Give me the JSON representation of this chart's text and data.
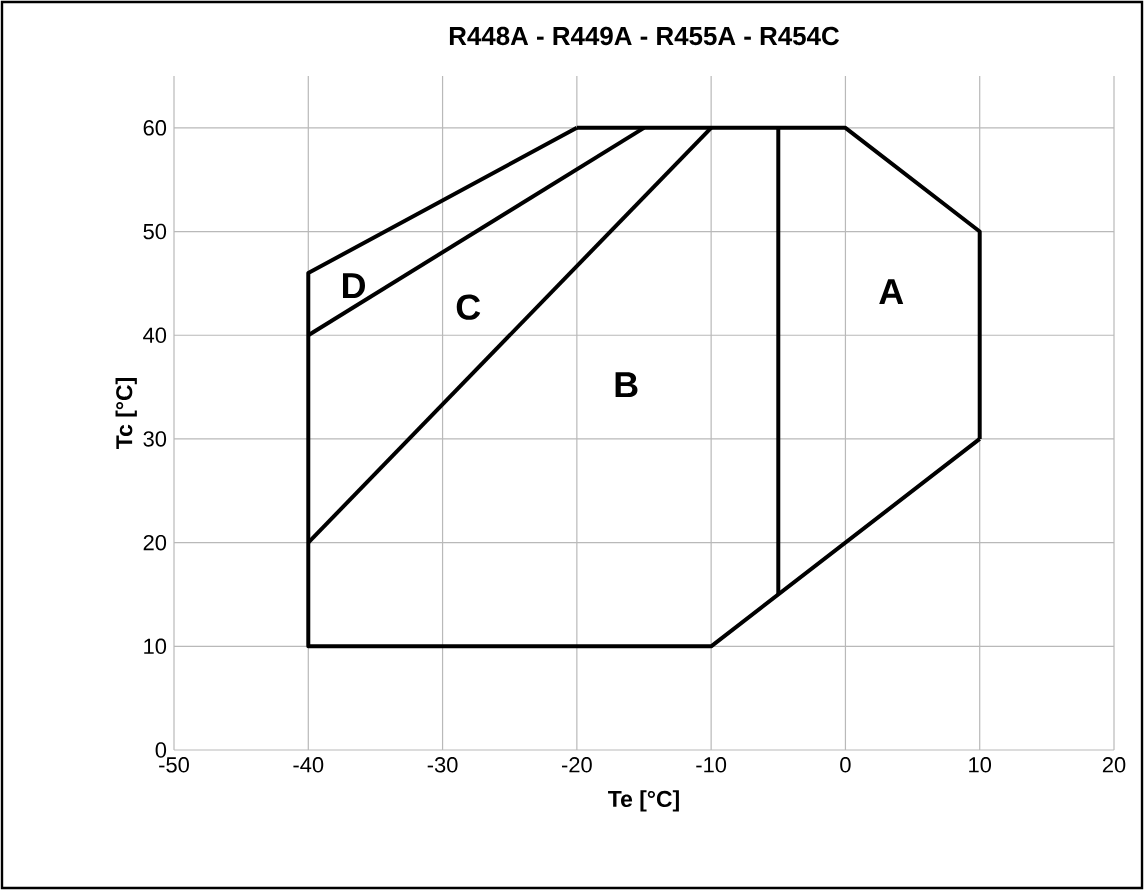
{
  "chart_data": {
    "type": "line",
    "title": "R448A - R449A - R455A - R454C",
    "xlabel": "Te [°C]",
    "ylabel": "Tc [°C]",
    "xlim": [
      -50,
      20
    ],
    "ylim": [
      0,
      65
    ],
    "xticks": [
      -50,
      -40,
      -30,
      -20,
      -10,
      0,
      10,
      20
    ],
    "yticks": [
      0,
      10,
      20,
      30,
      40,
      50,
      60
    ],
    "grid": true,
    "series": [
      {
        "color": "#000000",
        "x": [
          -20,
          -40,
          -40,
          -10,
          10
        ],
        "values": [
          60,
          46,
          10,
          10,
          30
        ]
      },
      {
        "color": "#000000",
        "x": [
          10,
          10,
          0,
          -20
        ],
        "values": [
          30,
          50,
          60,
          60
        ]
      },
      {
        "color": "#000000",
        "x": [
          -40,
          -15
        ],
        "values": [
          40,
          60
        ]
      },
      {
        "color": "#000000",
        "x": [
          -40,
          -10
        ],
        "values": [
          20,
          60
        ]
      },
      {
        "color": "#000000",
        "x": [
          -5,
          -5
        ],
        "values": [
          15,
          60
        ]
      }
    ],
    "annotations": [
      "A",
      "B",
      "C",
      "D"
    ]
  }
}
